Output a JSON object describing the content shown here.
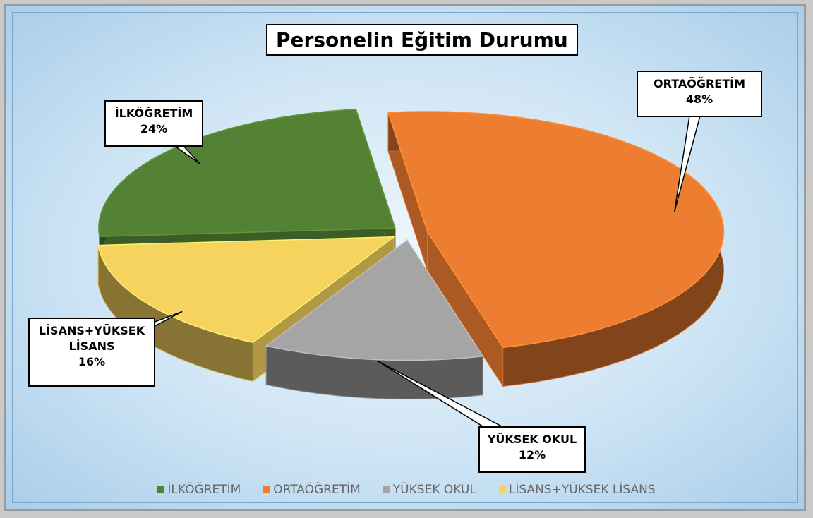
{
  "chart_data": {
    "type": "pie",
    "title": "Personelin Eğitim Durumu",
    "categories": [
      "İLKÖĞRETİM",
      "ORTAÖĞRETİM",
      "YÜKSEK OKUL",
      "LİSANS+YÜKSEK LİSANS"
    ],
    "values": [
      24,
      48,
      12,
      16
    ],
    "value_labels": [
      "24%",
      "48%",
      "12%",
      "16%"
    ],
    "colors": [
      "#548235",
      "#ed7d31",
      "#a5a5a5",
      "#f6d35e"
    ],
    "legend": "bottom"
  }
}
